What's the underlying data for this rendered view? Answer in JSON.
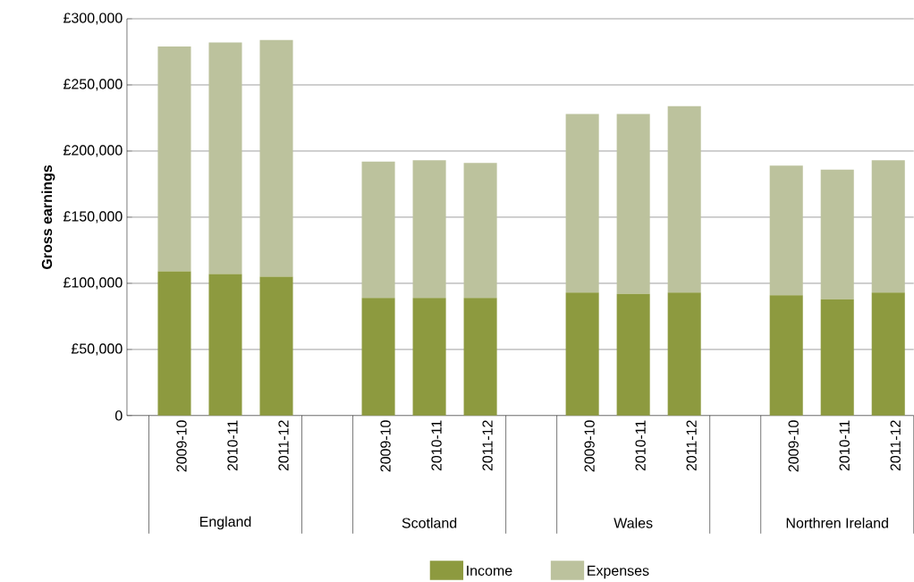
{
  "chart_data": {
    "type": "bar",
    "stacked": true,
    "ylabel": "Gross earnings",
    "categories": [
      "2009-10",
      "2010-11",
      "2011-12",
      "2009-10",
      "2010-11",
      "2011-12",
      "2009-10",
      "2010-11",
      "2011-12",
      "2009-10",
      "2010-11",
      "2011-12"
    ],
    "annotations": [
      "England",
      "Scotland",
      "Wales",
      "Northren Ireland"
    ],
    "series": [
      {
        "name": "Income",
        "color": "#8d9a3f",
        "values": [
          109000,
          107000,
          105000,
          89000,
          89000,
          89000,
          93000,
          92000,
          93000,
          91000,
          88000,
          93000
        ]
      },
      {
        "name": "Expenses",
        "color": "#bcc29d",
        "values": [
          170000,
          175000,
          179000,
          103000,
          104000,
          102000,
          135000,
          136000,
          141000,
          98000,
          98000,
          100000
        ]
      }
    ],
    "ylim": [
      0,
      300000
    ],
    "yticks": [
      {
        "value": 0,
        "label": "0"
      },
      {
        "value": 50000,
        "label": "£50,000"
      },
      {
        "value": 100000,
        "label": "£100,000"
      },
      {
        "value": 150000,
        "label": "£150,000"
      },
      {
        "value": 200000,
        "label": "£200,000"
      },
      {
        "value": 250000,
        "label": "£250,000"
      },
      {
        "value": 300000,
        "label": "£300,000"
      }
    ],
    "grid": "y",
    "legend": "bottom"
  }
}
